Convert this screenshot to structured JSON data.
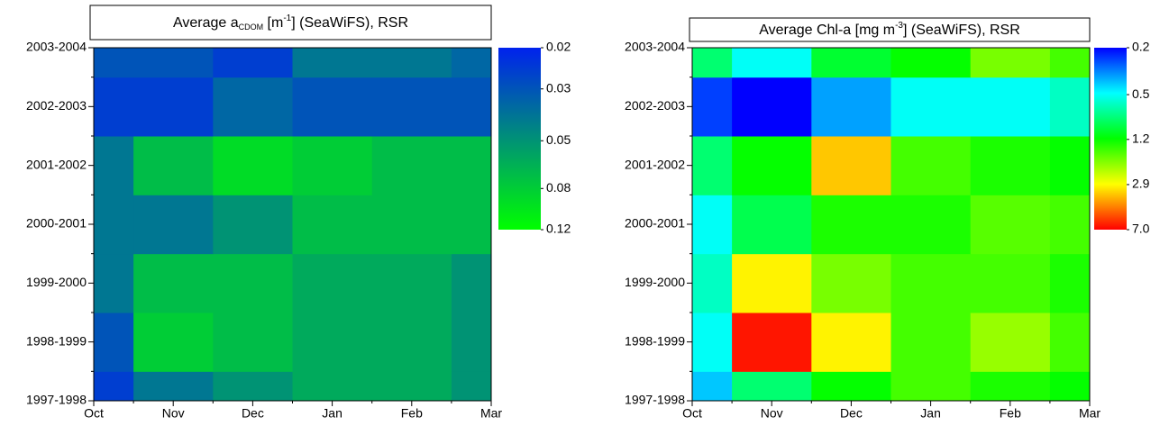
{
  "chart_data": [
    {
      "type": "heatmap",
      "title": [
        {
          "text": "Average a"
        },
        {
          "text": "CDOM",
          "shift": "sub"
        },
        {
          "text": " [m"
        },
        {
          "text": "-1",
          "shift": "sup"
        },
        {
          "text": "] (SeaWiFS), RSR"
        }
      ],
      "x": [
        "Oct",
        "Nov",
        "Dec",
        "Jan",
        "Feb",
        "Mar"
      ],
      "y": [
        "1997-1998",
        "1998-1999",
        "1999-2000",
        "2000-2001",
        "2001-2002",
        "2002-2003",
        "2003-2004"
      ],
      "z": [
        [
          0.025,
          0.04,
          0.05,
          0.06,
          0.06,
          0.05
        ],
        [
          0.03,
          0.08,
          0.07,
          0.06,
          0.06,
          0.05
        ],
        [
          0.04,
          0.07,
          0.07,
          0.06,
          0.06,
          0.05
        ],
        [
          0.04,
          0.04,
          0.05,
          0.07,
          0.07,
          0.07
        ],
        [
          0.04,
          0.07,
          0.09,
          0.08,
          0.07,
          0.07
        ],
        [
          0.025,
          0.025,
          0.035,
          0.03,
          0.03,
          0.03
        ],
        [
          0.03,
          0.03,
          0.025,
          0.04,
          0.04,
          0.035
        ]
      ],
      "zlim": [
        0.02,
        0.12
      ],
      "zlog": true,
      "zticks": [
        0.02,
        0.03,
        0.05,
        0.08,
        0.12
      ],
      "colorscale": [
        "#0022ee",
        "#00ff00"
      ]
    },
    {
      "type": "heatmap",
      "title": [
        {
          "text": "Average Chl-a [mg m"
        },
        {
          "text": "-3",
          "shift": "sup"
        },
        {
          "text": "] (SeaWiFS), RSR"
        }
      ],
      "x": [
        "Oct",
        "Nov",
        "Dec",
        "Jan",
        "Feb",
        "Mar"
      ],
      "y": [
        "1997-1998",
        "1998-1999",
        "1999-2000",
        "2000-2001",
        "2001-2002",
        "2002-2003",
        "2003-2004"
      ],
      "z": [
        [
          0.4,
          0.8,
          1.2,
          1.5,
          1.3,
          1.2
        ],
        [
          0.5,
          6.5,
          3,
          1.5,
          2,
          1.5
        ],
        [
          0.6,
          3,
          1.8,
          1.5,
          1.5,
          1.3
        ],
        [
          0.5,
          0.9,
          1.3,
          1.3,
          1.6,
          1.5
        ],
        [
          0.8,
          1.2,
          3.5,
          1.5,
          1.3,
          1.2
        ],
        [
          0.25,
          0.2,
          0.35,
          0.5,
          0.5,
          0.6
        ],
        [
          0.8,
          0.5,
          1.0,
          1.2,
          1.8,
          1.5
        ]
      ],
      "zlim": [
        0.2,
        7
      ],
      "zlog": true,
      "zticks": [
        0.2,
        0.5,
        1.2,
        2.9,
        {
          "value": 7,
          "label": "7.0"
        }
      ],
      "colorscale": [
        "#0000ff",
        "#00ffff",
        "#00ff00",
        "#ffff00",
        "#ff0000"
      ]
    }
  ]
}
